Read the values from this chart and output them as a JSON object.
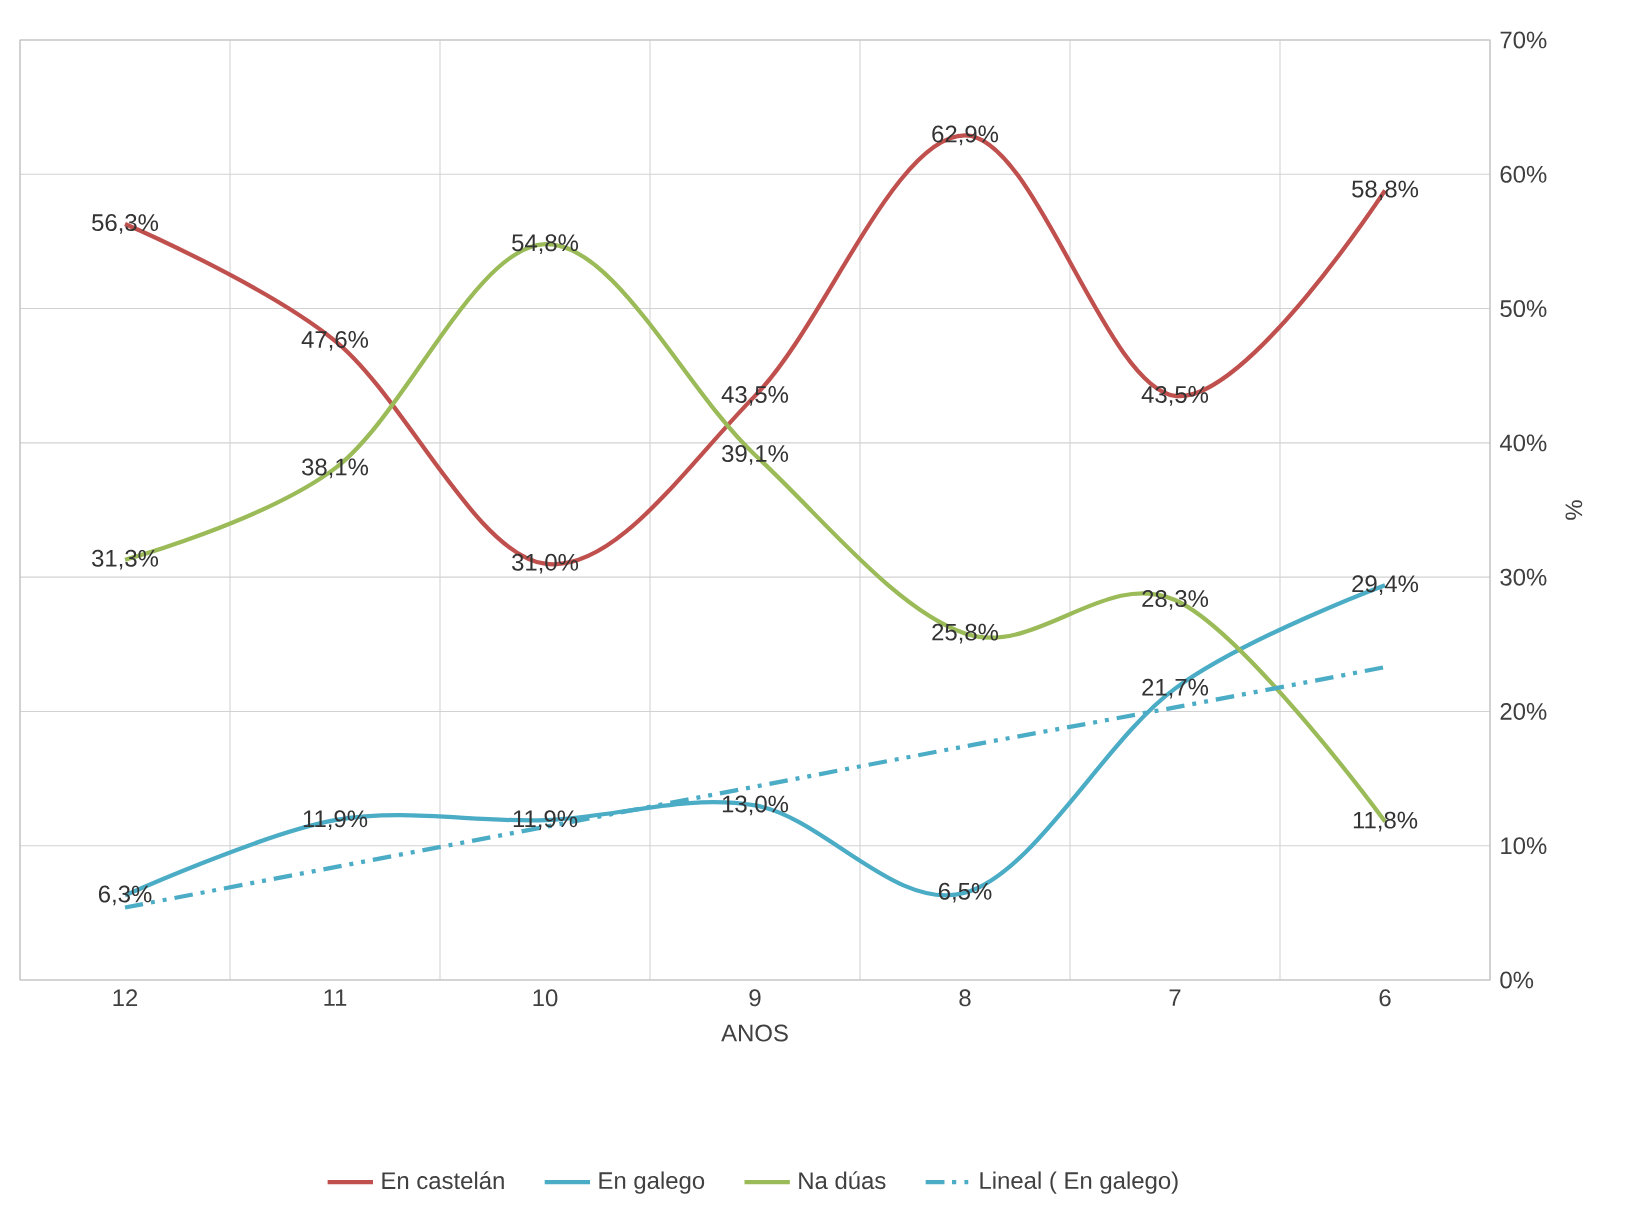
{
  "chart_data": {
    "type": "line",
    "xlabel": "ANOS",
    "ylabel": "%",
    "categories": [
      "12",
      "11",
      "10",
      "9",
      "8",
      "7",
      "6"
    ],
    "series": [
      {
        "name": "En castelán",
        "color": "#c0504d",
        "values": [
          56.3,
          47.6,
          31.0,
          43.5,
          62.9,
          43.5,
          58.8
        ],
        "value_labels": [
          "56,3%",
          "47,6%",
          "31,0%",
          "43,5%",
          "62,9%",
          "43,5%",
          "58,8%"
        ]
      },
      {
        "name": "En galego",
        "color": "#4bacc6",
        "values": [
          6.3,
          11.9,
          11.9,
          13.0,
          6.5,
          21.7,
          29.4
        ],
        "value_labels": [
          "6,3%",
          "11,9%",
          "11,9%",
          "13,0%",
          "6,5%",
          "21,7%",
          "29,4%"
        ]
      },
      {
        "name": "Na dúas",
        "color": "#9bbb59",
        "values": [
          31.3,
          38.1,
          54.8,
          39.1,
          25.8,
          28.3,
          11.8
        ],
        "value_labels": [
          "31,3%",
          "38,1%",
          "54,8%",
          "39,1%",
          "25,8%",
          "28,3%",
          "11,8%"
        ]
      },
      {
        "name": "Lineal ( En galego)",
        "color": "#4bacc6",
        "line_style": "dashed",
        "values": [
          5.4,
          8.4,
          11.4,
          14.4,
          17.4,
          20.3,
          23.3
        ]
      }
    ],
    "ylim": [
      0,
      70
    ],
    "yticks": [
      {
        "value": 0,
        "label": "0%"
      },
      {
        "value": 10,
        "label": "10%"
      },
      {
        "value": 20,
        "label": "20%"
      },
      {
        "value": 30,
        "label": "30%"
      },
      {
        "value": 40,
        "label": "40%"
      },
      {
        "value": 50,
        "label": "50%"
      },
      {
        "value": 60,
        "label": "60%"
      },
      {
        "value": 70,
        "label": "70%"
      }
    ],
    "grid": true,
    "legend": "bottom",
    "marker": "none"
  }
}
